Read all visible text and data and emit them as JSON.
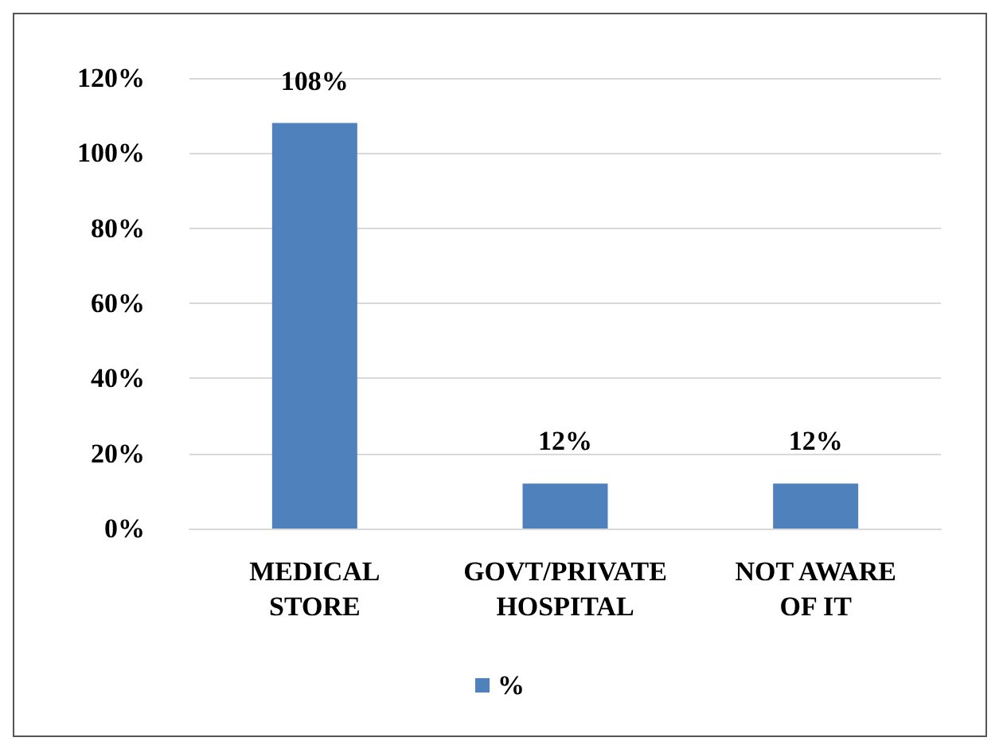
{
  "chart_data": {
    "type": "bar",
    "categories": [
      "MEDICAL\nSTORE",
      "GOVT/PRIVATE\nHOSPITAL",
      "NOT AWARE\nOF IT"
    ],
    "series": [
      {
        "name": "%",
        "color": "#4f81bd",
        "values": [
          108,
          12,
          12
        ],
        "value_labels": [
          "108%",
          "12%",
          "12%"
        ]
      }
    ],
    "ylim": [
      0,
      120
    ],
    "yticks": [
      {
        "value": 0,
        "label": "0%"
      },
      {
        "value": 20,
        "label": "20%"
      },
      {
        "value": 40,
        "label": "40%"
      },
      {
        "value": 60,
        "label": "60%"
      },
      {
        "value": 80,
        "label": "80%"
      },
      {
        "value": 100,
        "label": "100%"
      },
      {
        "value": 120,
        "label": "120%"
      }
    ],
    "grid": "y",
    "legend": "bottom"
  }
}
